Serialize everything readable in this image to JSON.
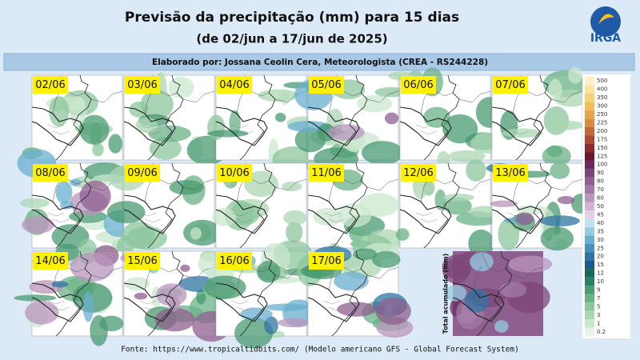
{
  "header": {
    "title": "Previsão da precipitação (mm) para 15 dias",
    "subtitle": "(de 02/jun a 17/jun de 2025)",
    "author": "Elaborado por: Jossana Ceolin Cera, Meteorologista (CREA - RS244228)",
    "logo": "IRGA"
  },
  "maps": [
    "02/06",
    "03/06",
    "04/06",
    "05/06",
    "06/06",
    "07/06",
    "08/06",
    "09/06",
    "10/06",
    "11/06",
    "12/06",
    "13/06",
    "14/06",
    "15/06",
    "16/06",
    "17/06"
  ],
  "total_label": "Total acumulado (mm)",
  "colorbar": {
    "labels": [
      500,
      400,
      350,
      300,
      250,
      225,
      200,
      175,
      150,
      125,
      100,
      90,
      80,
      70,
      60,
      50,
      45,
      40,
      35,
      30,
      25,
      20,
      15,
      12,
      10,
      9,
      7,
      5,
      3,
      1,
      0.2
    ],
    "colors": [
      "#fdf0c8",
      "#fbe3a0",
      "#f8d27a",
      "#f2bd5c",
      "#e9a34a",
      "#d98a3e",
      "#c46a38",
      "#a94a34",
      "#8c2c30",
      "#6e1530",
      "#6b2a5e",
      "#7c4577",
      "#8f5f8f",
      "#a37aa6",
      "#b996bd",
      "#d0b4d4",
      "#e4d0e6",
      "#bfe3ee",
      "#94cbe0",
      "#6aafcf",
      "#4891bb",
      "#2f74a3",
      "#1c5a88",
      "#17685c",
      "#2b8262",
      "#4a9a72",
      "#6ab186",
      "#8cc69c",
      "#acd7b4",
      "#cbe7cd",
      "#e6f3e5"
    ]
  },
  "footer": "Fonte: https://www.tropicaltidbits.com/ (Modelo americano GFS - Global Forecast System)"
}
